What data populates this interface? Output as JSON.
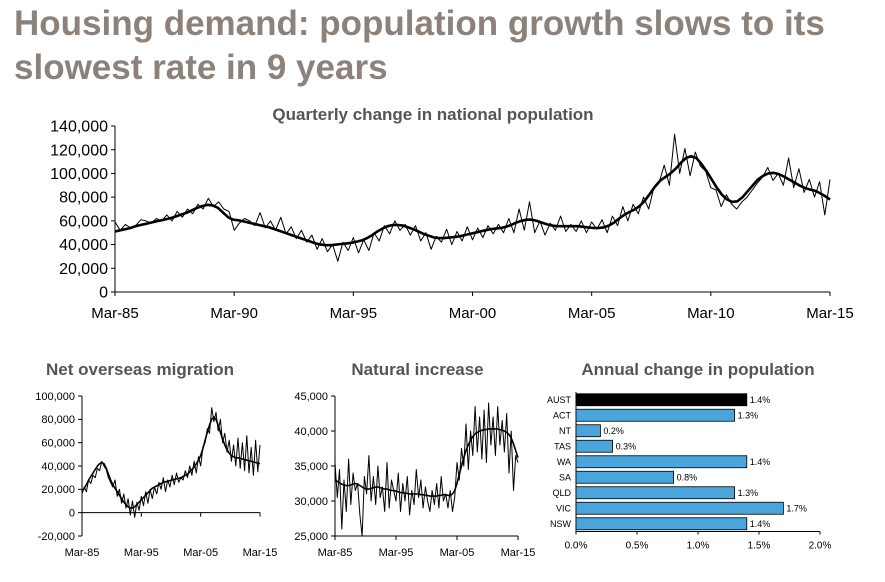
{
  "title": "Housing demand: population growth slows to its slowest rate in 9 years",
  "chart_data": [
    {
      "type": "line",
      "title": "Quarterly change in national population",
      "ylim": [
        0,
        140000
      ],
      "yticks": [
        "0",
        "20,000",
        "40,000",
        "60,000",
        "80,000",
        "100,000",
        "120,000",
        "140,000"
      ],
      "xticks": [
        "Mar-85",
        "Mar-90",
        "Mar-95",
        "Mar-00",
        "Mar-05",
        "Mar-10",
        "Mar-15"
      ],
      "x_start": "Mar-85",
      "x_end": "Mar-15",
      "series": [
        {
          "values": [
            59000,
            52000,
            57000,
            54000,
            56000,
            61000,
            60000,
            58000,
            62000,
            60000,
            65000,
            60000,
            68000,
            63000,
            70000,
            66000,
            74000,
            70000,
            79000,
            72000,
            76000,
            70000,
            68000,
            52000,
            58000,
            62000,
            60000,
            56000,
            67000,
            54000,
            60000,
            52000,
            63000,
            49000,
            55000,
            45000,
            52000,
            42000,
            48000,
            36000,
            45000,
            34000,
            40000,
            26000,
            42000,
            35000,
            46000,
            33000,
            44000,
            35000,
            50000,
            43000,
            56000,
            49000,
            60000,
            52000,
            57000,
            48000,
            56000,
            43000,
            50000,
            36000,
            47000,
            42000,
            53000,
            40000,
            51000,
            43000,
            55000,
            44000,
            54000,
            46000,
            56000,
            49000,
            57000,
            50000,
            62000,
            50000,
            70000,
            52000,
            76000,
            50000,
            60000,
            48000,
            58000,
            52000,
            64000,
            51000,
            57000,
            51000,
            60000,
            50000,
            59000,
            53000,
            61000,
            50000,
            64000,
            56000,
            72000,
            60000,
            74000,
            66000,
            80000,
            70000,
            88000,
            92000,
            107000,
            90000,
            133000,
            100000,
            121000,
            98000,
            118000,
            106000,
            102000,
            88000,
            86000,
            72000,
            82000,
            74000,
            70000,
            76000,
            80000,
            86000,
            92000,
            97000,
            105000,
            94000,
            100000,
            90000,
            113000,
            88000,
            104000,
            84000,
            95000,
            80000,
            93000,
            65000,
            95000
          ]
        },
        {
          "values": [
            51000,
            52000,
            53000,
            54000,
            55500,
            56500,
            57500,
            58500,
            59500,
            60500,
            61500,
            62500,
            64000,
            65500,
            67000,
            69000,
            71000,
            72500,
            73500,
            73000,
            71000,
            67000,
            63000,
            61000,
            60500,
            59500,
            58500,
            57500,
            56500,
            55500,
            54500,
            53000,
            51500,
            50000,
            48500,
            47000,
            45500,
            44000,
            42500,
            41000,
            40000,
            39500,
            39500,
            40000,
            40500,
            41000,
            41500,
            42500,
            43500,
            45500,
            48000,
            51000,
            53500,
            55500,
            56500,
            56500,
            56000,
            54500,
            53000,
            51000,
            49000,
            47500,
            46000,
            45500,
            45500,
            46000,
            46500,
            47000,
            48000,
            49000,
            50000,
            51000,
            52000,
            53000,
            53500,
            54000,
            55000,
            56500,
            58500,
            60000,
            61000,
            61000,
            60000,
            58500,
            57000,
            56000,
            55500,
            55500,
            55500,
            55500,
            55500,
            55000,
            54500,
            54000,
            54000,
            54500,
            56000,
            58500,
            62000,
            65000,
            67500,
            69500,
            72500,
            77000,
            83000,
            89000,
            94000,
            97000,
            100000,
            104000,
            109000,
            113000,
            114500,
            113000,
            108000,
            102000,
            95000,
            88000,
            82000,
            78000,
            76000,
            76500,
            80000,
            85000,
            90000,
            95000,
            98000,
            100000,
            100500,
            99500,
            97500,
            95000,
            92500,
            90000,
            88000,
            86500,
            85500,
            83500,
            81000,
            78000
          ]
        }
      ]
    },
    {
      "type": "line",
      "title": "Net overseas migration",
      "ylim": [
        -20000,
        100000
      ],
      "yticks": [
        "-20,000",
        "0",
        "20,000",
        "40,000",
        "60,000",
        "80,000",
        "100,000"
      ],
      "xticks": [
        "Mar-85",
        "Mar-95",
        "Mar-05",
        "Mar-15"
      ],
      "x_start": "Mar-85",
      "x_end": "Mar-15",
      "series": [
        {
          "values": [
            16000,
            22000,
            18000,
            28000,
            25000,
            32000,
            30000,
            38000,
            36000,
            44000,
            40000,
            37000,
            30000,
            26000,
            22000,
            28000,
            14000,
            20000,
            8000,
            16000,
            4000,
            12000,
            -2000,
            10000,
            -4000,
            9000,
            2000,
            14000,
            6000,
            18000,
            8000,
            20000,
            12000,
            22000,
            16000,
            26000,
            20000,
            30000,
            18000,
            28000,
            22000,
            32000,
            24000,
            34000,
            26000,
            30000,
            28000,
            36000,
            30000,
            40000,
            32000,
            44000,
            34000,
            48000,
            40000,
            56000,
            60000,
            72000,
            68000,
            90000,
            78000,
            86000,
            70000,
            80000,
            60000,
            68000,
            52000,
            62000,
            44000,
            58000,
            40000,
            64000,
            38000,
            60000,
            36000,
            66000,
            34000,
            56000,
            32000,
            62000,
            35000,
            58000
          ]
        },
        {
          "values": [
            18000,
            21000,
            24000,
            28000,
            31000,
            34000,
            37000,
            40000,
            42000,
            43000,
            42000,
            38000,
            33000,
            28000,
            24000,
            21000,
            18000,
            15000,
            12000,
            9000,
            7000,
            5000,
            4000,
            4000,
            5000,
            7000,
            9000,
            11000,
            13000,
            15000,
            17000,
            19000,
            21000,
            22000,
            23000,
            24000,
            25000,
            26000,
            26500,
            27000,
            27500,
            28000,
            28500,
            29000,
            29500,
            30000,
            31000,
            32000,
            33000,
            35000,
            37000,
            39000,
            42000,
            45000,
            49000,
            55000,
            62000,
            69000,
            75000,
            80000,
            82000,
            80000,
            75000,
            69000,
            63000,
            58000,
            54000,
            51000,
            49000,
            48000,
            47000,
            47000,
            46500,
            46000,
            45500,
            45000,
            44500,
            44000,
            43500,
            43000,
            42500,
            42000
          ]
        }
      ]
    },
    {
      "type": "line",
      "title": "Natural increase",
      "ylim": [
        25000,
        45000
      ],
      "yticks": [
        "25,000",
        "30,000",
        "35,000",
        "40,000",
        "45,000"
      ],
      "xticks": [
        "Mar-85",
        "Mar-95",
        "Mar-05",
        "Mar-15"
      ],
      "x_start": "Mar-85",
      "x_end": "Mar-15",
      "series": [
        {
          "values": [
            35500,
            30500,
            34500,
            26000,
            33000,
            28500,
            36000,
            29500,
            34000,
            31500,
            32500,
            28000,
            25000,
            33500,
            31000,
            36500,
            30000,
            33500,
            29500,
            35000,
            30500,
            32000,
            28500,
            35500,
            29000,
            33000,
            31500,
            30000,
            34000,
            28500,
            32500,
            30000,
            33500,
            28000,
            31500,
            29500,
            34500,
            30500,
            33000,
            29000,
            32000,
            30000,
            28500,
            31500,
            29500,
            32500,
            29000,
            33500,
            30000,
            31000,
            29000,
            31500,
            28500,
            30500,
            35500,
            33000,
            37500,
            35000,
            41000,
            34500,
            40000,
            36500,
            43500,
            37000,
            42000,
            36000,
            43000,
            35500,
            44000,
            38000,
            42000,
            36500,
            43500,
            38000,
            41500,
            37000,
            42500,
            34000,
            40000,
            31500,
            36500,
            35500
          ]
        },
        {
          "values": [
            33000,
            32800,
            32600,
            32400,
            32300,
            32200,
            32200,
            32300,
            32400,
            32500,
            32400,
            32200,
            32000,
            31800,
            31700,
            31700,
            31800,
            31900,
            32000,
            32000,
            31900,
            31800,
            31700,
            31700,
            31600,
            31500,
            31500,
            31400,
            31300,
            31200,
            31200,
            31100,
            31100,
            31000,
            31000,
            31000,
            31000,
            31000,
            30900,
            30900,
            30800,
            30800,
            30700,
            30700,
            30700,
            30700,
            30800,
            30800,
            30900,
            30900,
            30800,
            30800,
            31000,
            31500,
            32500,
            33800,
            35000,
            36200,
            37200,
            38000,
            38700,
            39200,
            39600,
            39800,
            40000,
            40100,
            40200,
            40200,
            40300,
            40300,
            40300,
            40300,
            40300,
            40200,
            40100,
            40000,
            39800,
            39500,
            39000,
            38200,
            37200,
            36200
          ]
        }
      ]
    },
    {
      "type": "bar",
      "orientation": "horizontal",
      "title": "Annual change in population",
      "categories": [
        "AUST",
        "ACT",
        "NT",
        "TAS",
        "WA",
        "SA",
        "QLD",
        "VIC",
        "NSW"
      ],
      "values": [
        1.4,
        1.3,
        0.2,
        0.3,
        1.4,
        0.8,
        1.3,
        1.7,
        1.4
      ],
      "data_labels": [
        "1.4%",
        "1.3%",
        "0.2%",
        "0.3%",
        "1.4%",
        "0.8%",
        "1.3%",
        "1.7%",
        "1.4%"
      ],
      "highlight_category": "AUST",
      "xlim": [
        0,
        2.0
      ],
      "xticks": [
        "0.0%",
        "0.5%",
        "1.0%",
        "1.5%",
        "2.0%"
      ],
      "colors": {
        "bar": "#4aa5dc",
        "highlight": "#000000",
        "outline": "#000000"
      }
    }
  ]
}
